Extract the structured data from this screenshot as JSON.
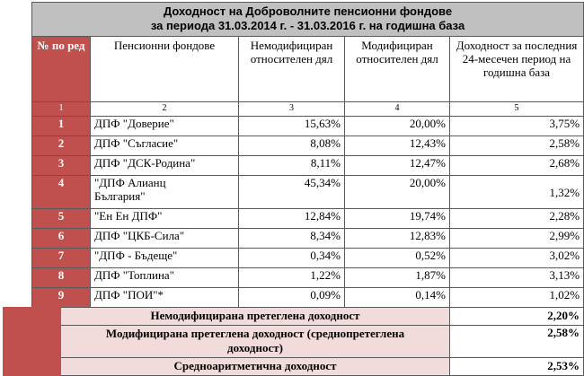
{
  "title_line1": "Доходност на Доброволните пенсионни фондове",
  "title_line2": "за периода 31.03.2014 г. - 31.03.2016 г. на годишна база",
  "headers": {
    "no": "№ по ред",
    "fund": "Пенсионни фондове",
    "unmod": "Немодифициран относителен дял",
    "mod": "Модифициран относителен дял",
    "ret": "Доходност за последния 24-месечен период на годишна база"
  },
  "col_index": [
    "1",
    "2",
    "3",
    "4",
    "5"
  ],
  "rows": [
    {
      "no": "1",
      "fund": "ДПФ \"Доверие\"",
      "unmod": "15,63%",
      "mod": "20,00%",
      "ret": "3,75%"
    },
    {
      "no": "2",
      "fund": "ДПФ \"Съгласие\"",
      "unmod": "8,08%",
      "mod": "12,43%",
      "ret": "2,58%"
    },
    {
      "no": "3",
      "fund": "ДПФ \"ДСК-Родина\"",
      "unmod": "8,11%",
      "mod": "12,47%",
      "ret": "2,68%"
    },
    {
      "no": "4",
      "fund": "\"ДПФ Алианц България\"",
      "unmod": "45,34%",
      "mod": "20,00%",
      "ret": "1,32%"
    },
    {
      "no": "5",
      "fund": "\"Ен Ен ДПФ\"",
      "unmod": "12,84%",
      "mod": "19,74%",
      "ret": "2,28%"
    },
    {
      "no": "6",
      "fund": "ДПФ \"ЦКБ-Сила\"",
      "unmod": "8,34%",
      "mod": "12,83%",
      "ret": "2,99%"
    },
    {
      "no": "7",
      "fund": "\"ДПФ - Бъдеще\"",
      "unmod": "0,34%",
      "mod": "0,52%",
      "ret": "3,02%"
    },
    {
      "no": "8",
      "fund": "ДПФ \"Топлина\"",
      "unmod": "1,22%",
      "mod": "1,87%",
      "ret": "3,13%"
    },
    {
      "no": "9",
      "fund": "ДПФ \"ПОИ\"*",
      "unmod": "0,09%",
      "mod": "0,14%",
      "ret": "1,02%"
    }
  ],
  "summary": [
    {
      "label": "Немодифицирана претеглена доходност",
      "value": "2,20%"
    },
    {
      "label": "Модифицирана претеглена доходност (среднопретеглена доходност)",
      "value": "2,58%"
    },
    {
      "label": "Средноаритметична доходност",
      "value": "2,53%"
    }
  ],
  "colors": {
    "accent_red": "#c0504d",
    "title_gray": "#c0c0c0",
    "summary_pink": "#f2dcdb"
  }
}
